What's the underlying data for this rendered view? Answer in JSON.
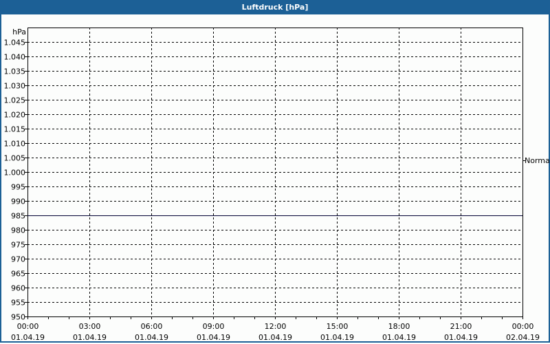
{
  "window": {
    "title": "Luftdruck [hPa]",
    "border_color": "#1c6096"
  },
  "chart_data": {
    "type": "line",
    "title": "Luftdruck [hPa]",
    "ylabel": "hPa",
    "ylim": [
      950,
      1050
    ],
    "yticks": [
      "950",
      "955",
      "960",
      "965",
      "970",
      "975",
      "980",
      "985",
      "990",
      "995",
      "1.000",
      "1.005",
      "1.010",
      "1.015",
      "1.020",
      "1.025",
      "1.030",
      "1.035",
      "1.040",
      "1.045"
    ],
    "xlim_hours": [
      0,
      24
    ],
    "xticks": [
      {
        "time": "00:00",
        "date": "01.04.19"
      },
      {
        "time": "03:00",
        "date": "01.04.19"
      },
      {
        "time": "06:00",
        "date": "01.04.19"
      },
      {
        "time": "09:00",
        "date": "01.04.19"
      },
      {
        "time": "12:00",
        "date": "01.04.19"
      },
      {
        "time": "15:00",
        "date": "01.04.19"
      },
      {
        "time": "18:00",
        "date": "01.04.19"
      },
      {
        "time": "21:00",
        "date": "01.04.19"
      },
      {
        "time": "00:00",
        "date": "02.04.19"
      }
    ],
    "grid": true,
    "series": [
      {
        "x": [
          0,
          24
        ],
        "y": [
          985,
          985
        ],
        "color": "#000033"
      }
    ],
    "reference": {
      "label": "Normal",
      "value": 1004
    }
  }
}
